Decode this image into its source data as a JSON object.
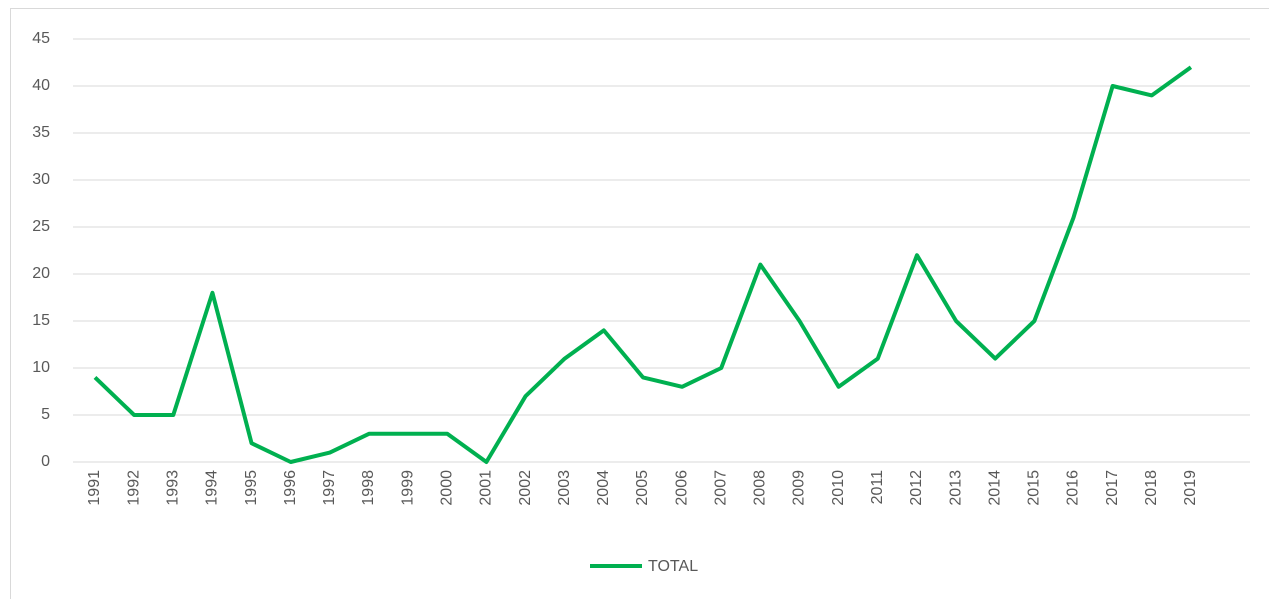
{
  "chart_data": {
    "type": "line",
    "categories": [
      "1991",
      "1992",
      "1993",
      "1994",
      "1995",
      "1996",
      "1997",
      "1998",
      "1999",
      "2000",
      "2001",
      "2002",
      "2003",
      "2004",
      "2005",
      "2006",
      "2007",
      "2008",
      "2009",
      "2010",
      "2011",
      "2012",
      "2013",
      "2014",
      "2015",
      "2016",
      "2017",
      "2018",
      "2019"
    ],
    "series": [
      {
        "name": "TOTAL",
        "color": "#00b050",
        "values": [
          9,
          5,
          5,
          18,
          2,
          0,
          1,
          3,
          3,
          3,
          0,
          7,
          11,
          14,
          9,
          8,
          10,
          21,
          15,
          8,
          11,
          22,
          15,
          11,
          15,
          26,
          40,
          39,
          42
        ]
      }
    ],
    "ylim": [
      0,
      45
    ],
    "yticks": [
      0,
      5,
      10,
      15,
      20,
      25,
      30,
      35,
      40,
      45
    ],
    "grid": true,
    "legend": "bottom"
  }
}
